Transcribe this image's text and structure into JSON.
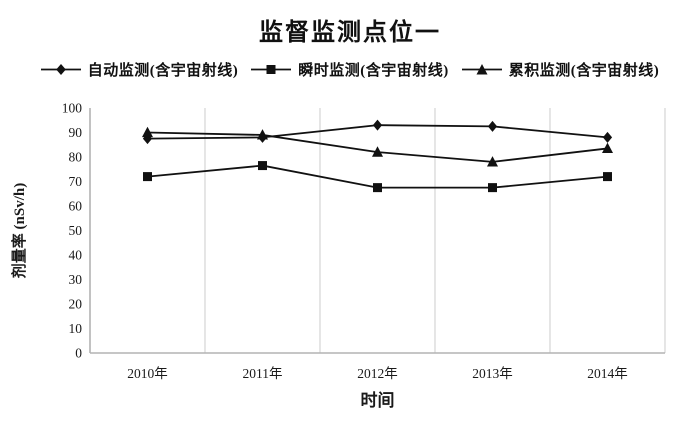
{
  "title": "监督监测点位一",
  "chart_data": {
    "type": "line",
    "title": "监督监测点位一",
    "xlabel": "时间",
    "ylabel": "剂量率 (nSv/h)",
    "categories": [
      "2010年",
      "2011年",
      "2012年",
      "2013年",
      "2014年"
    ],
    "series": [
      {
        "name": "自动监测(含宇宙射线)",
        "marker": "diamond",
        "values": [
          87.5,
          88,
          93,
          92.5,
          88
        ]
      },
      {
        "name": "瞬时监测(含宇宙射线)",
        "marker": "square",
        "values": [
          72,
          76.5,
          67.5,
          67.5,
          72
        ]
      },
      {
        "name": "累积监测(含宇宙射线)",
        "marker": "triangle",
        "values": [
          90,
          89,
          82,
          78,
          83.5
        ]
      }
    ],
    "ylim": [
      0,
      100
    ],
    "yticks": [
      0,
      10,
      20,
      30,
      40,
      50,
      60,
      70,
      80,
      90,
      100
    ],
    "grid": "vertical-category-boundaries-only",
    "legend_position": "top",
    "colors": {
      "series": "#111111",
      "axis": "#b3b3b3",
      "gridline": "#d4d4d4",
      "text": "#1a1a1a",
      "background": "#ffffff"
    }
  }
}
